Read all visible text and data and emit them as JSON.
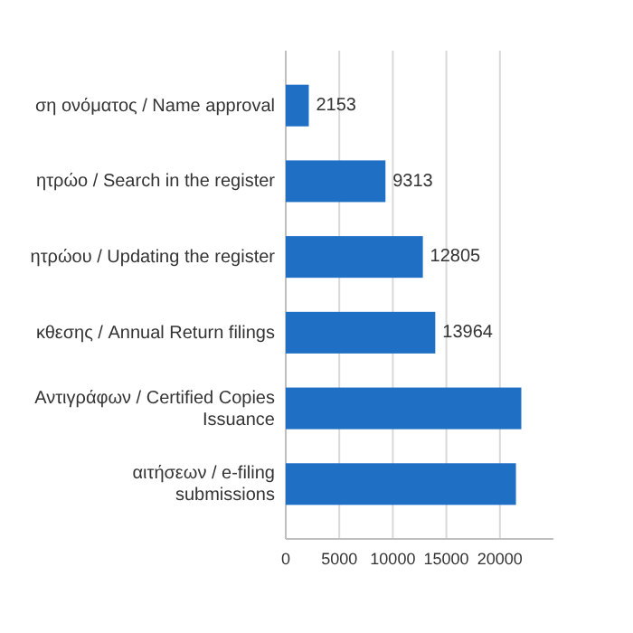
{
  "chart_data": {
    "type": "bar",
    "orientation": "horizontal",
    "categories": [
      "ση ονόματος / Name approval",
      "ητρώο / Search in the register",
      "ητρώου / Updating the register",
      "κθεσης / Annual Return filings",
      "Αντιγράφων / Certified Copies Issuance",
      "αιτήσεων / e-filing submissions"
    ],
    "values": [
      2153,
      9313,
      12805,
      13964,
      22000,
      21500
    ],
    "value_labels": [
      "2153",
      "9313",
      "12805",
      "13964",
      null,
      null
    ],
    "color": "#1f6fc5",
    "xlim": [
      0,
      25000
    ],
    "xticks": [
      0,
      5000,
      10000,
      15000,
      20000
    ],
    "grid": "x"
  }
}
